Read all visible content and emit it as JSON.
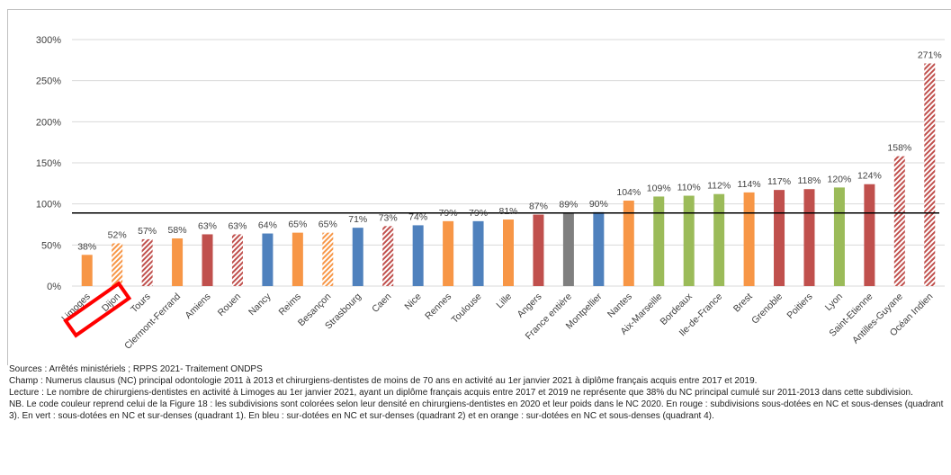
{
  "chart_data": {
    "type": "bar",
    "categories": [
      "Limoges",
      "Dijon",
      "Tours",
      "Clermont-Ferrand",
      "Amiens",
      "Rouen",
      "Nancy",
      "Reims",
      "Besançon",
      "Strasbourg",
      "Caen",
      "Nice",
      "Rennes",
      "Toulouse",
      "Lille",
      "Angers",
      "France entière",
      "Montpellier",
      "Nantes",
      "Aix-Marseille",
      "Bordeaux",
      "Ile-de-France",
      "Brest",
      "Grenoble",
      "Poitiers",
      "Lyon",
      "Saint-Etienne",
      "Antilles-Guyane",
      "Océan Indien"
    ],
    "values": [
      38,
      52,
      57,
      58,
      63,
      63,
      64,
      65,
      65,
      71,
      73,
      74,
      79,
      79,
      81,
      87,
      89,
      90,
      104,
      109,
      110,
      112,
      114,
      117,
      118,
      120,
      124,
      158,
      271
    ],
    "value_labels": [
      "38%",
      "52%",
      "57%",
      "58%",
      "63%",
      "63%",
      "64%",
      "65%",
      "65%",
      "71%",
      "73%",
      "74%",
      "79%",
      "79%",
      "81%",
      "87%",
      "89%",
      "90%",
      "104%",
      "109%",
      "110%",
      "112%",
      "114%",
      "117%",
      "118%",
      "120%",
      "124%",
      "158%",
      "271%"
    ],
    "bar_colors": [
      "orange",
      "orange",
      "red",
      "orange",
      "red",
      "red",
      "blue",
      "orange",
      "orange",
      "blue",
      "red",
      "blue",
      "orange",
      "blue",
      "orange",
      "red",
      "gray",
      "blue",
      "orange",
      "green",
      "green",
      "green",
      "orange",
      "red",
      "red",
      "green",
      "red",
      "red",
      "red"
    ],
    "hatched": [
      false,
      true,
      true,
      false,
      false,
      true,
      false,
      false,
      true,
      false,
      true,
      false,
      false,
      false,
      false,
      false,
      false,
      false,
      false,
      false,
      false,
      false,
      false,
      false,
      false,
      false,
      false,
      true,
      true
    ],
    "palette": {
      "orange": "#f79646",
      "red": "#c0504d",
      "blue": "#4f81bd",
      "green": "#9bbb59",
      "gray": "#7f7f7f"
    },
    "ylim": [
      0,
      300
    ],
    "yticks": [
      0,
      50,
      100,
      150,
      200,
      250,
      300
    ],
    "ytick_labels": [
      "0%",
      "50%",
      "100%",
      "150%",
      "200%",
      "250%",
      "300%"
    ],
    "reference_line": 89,
    "reference_line_color": "#000000",
    "highlight": {
      "category": "Dijon",
      "color": "#ff0000"
    },
    "grid": true,
    "title": "",
    "xlabel": "",
    "ylabel": ""
  },
  "notes": {
    "sources": "Sources : Arrêtés ministériels ; RPPS 2021- Traitement ONDPS",
    "champ": "Champ : Numerus clausus (NC) principal odontologie 2011 à 2013 et chirurgiens-dentistes de moins de 70 ans en activité au 1er janvier 2021 à diplôme français acquis entre 2017 et 2019.",
    "lecture": "Lecture : Le nombre de chirurgiens-dentistes en activité à Limoges au 1er janvier 2021, ayant un diplôme français acquis entre 2017 et 2019 ne représente que 38% du NC principal cumulé sur 2011-2013 dans cette subdivision.",
    "nb": "NB. Le code couleur reprend celui de la Figure 18 : les subdivisions sont colorées selon leur densité en chirurgiens-dentistes en 2020 et leur poids dans le NC 2020. En rouge : subdivisions sous-dotées en NC et sous-denses (quadrant 3). En vert : sous-dotées en NC et sur-denses (quadrant 1). En bleu : sur-dotées en NC et sur-denses (quadrant 2) et en orange : sur-dotées en NC et sous-denses (quadrant 4)."
  }
}
